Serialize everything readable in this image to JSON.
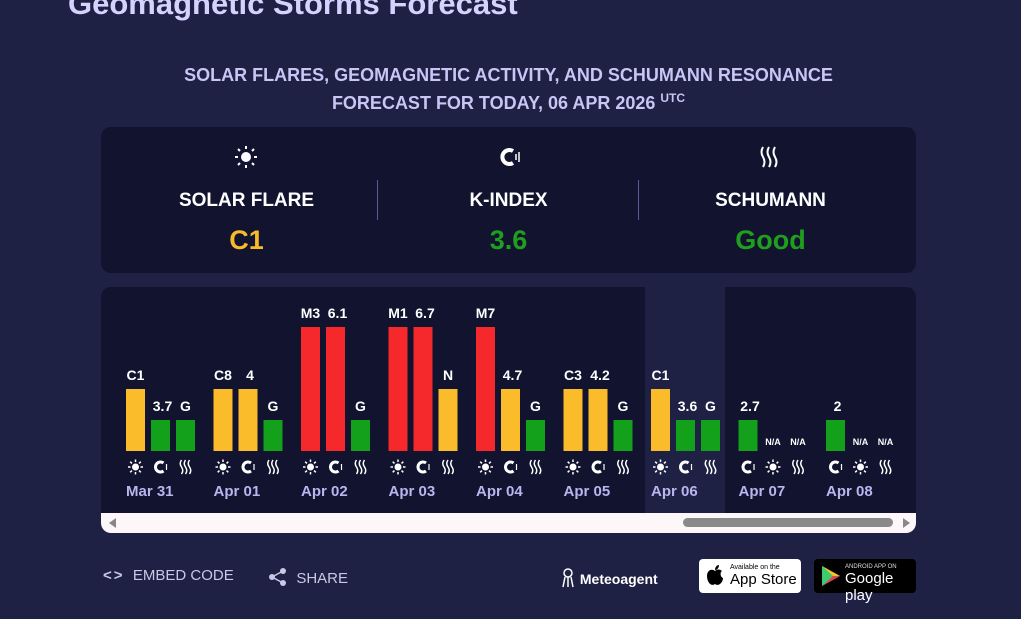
{
  "title": "Geomagnetic Storms Forecast",
  "subtitle": {
    "lines": [
      "SOLAR FLARES, GEOMAGNETIC ACTIVITY, AND SCHUMANN RESONANCE",
      "FORECAST FOR TODAY, 06 APR 2026"
    ],
    "sup": "UTC"
  },
  "summary": [
    {
      "label": "SOLAR FLARE",
      "value": "C1",
      "color": "#f8b92b"
    },
    {
      "label": "K-INDEX",
      "value": 3.6,
      "color": "#1ea01e"
    },
    {
      "label": "SCHUMANN",
      "value": "Good",
      "color": "#1ea01e"
    }
  ],
  "days": [
    {
      "date": "Mar 31",
      "flare": "C1",
      "kindex": 3.7,
      "schumann": "G"
    },
    {
      "date": "Apr 01",
      "flare": "C8",
      "kindex": 4,
      "schumann": "G"
    },
    {
      "date": "Apr 02",
      "flare": "M3",
      "kindex": 6.1,
      "schumann": "G"
    },
    {
      "date": "Apr 03",
      "flare": "M1",
      "kindex": 6.7,
      "schumann": "N"
    },
    {
      "date": "Apr 04",
      "flare": "M7",
      "kindex": 4.7,
      "schumann": "G"
    },
    {
      "date": "Apr 05",
      "flare": "C3",
      "kindex": 4.2,
      "schumann": "G"
    },
    {
      "date": "Apr 06",
      "flare": "C1",
      "kindex": 3.6,
      "schumann": "G"
    },
    {
      "date": "Apr 07",
      "flare": "N/A",
      "kindex": 2.7,
      "schumann": "N/A"
    },
    {
      "date": "Apr 08",
      "flare": "N/A",
      "kindex": 2,
      "schumann": "N/A"
    }
  ],
  "today": "Apr 06",
  "footer": {
    "embed": "EMBED CODE",
    "share": "SHARE",
    "brand": "Meteoagent",
    "appstore": {
      "small": "Available on the",
      "big": "App Store"
    },
    "googleplay": {
      "small": "ANDROID APP ON",
      "big": "Google play"
    }
  }
}
